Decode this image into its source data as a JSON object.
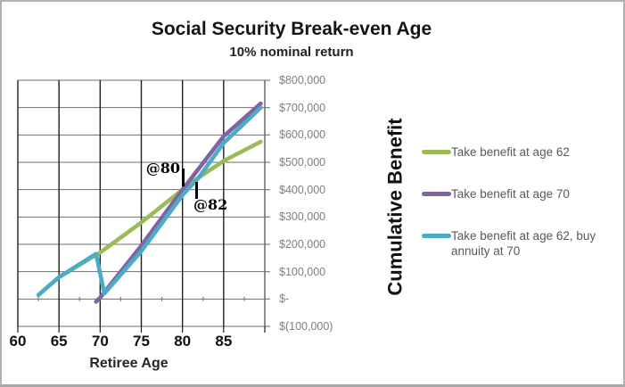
{
  "frame": {
    "background": "#ffffff",
    "border_color": "#b1b1b1"
  },
  "header": {
    "title": "Social Security Break-even Age",
    "subtitle": "10% nominal return"
  },
  "axes": {
    "x_title": "Retiree Age",
    "y_title": "Cumulative Benefit",
    "x_tick_labels": [
      "60",
      "65",
      "70",
      "75",
      "80",
      "85"
    ],
    "y_tick_labels": [
      "$800,000",
      "$700,000",
      "$600,000",
      "$500,000",
      "$400,000",
      "$300,000",
      "$200,000",
      "$100,000",
      "$-",
      "$(100,000)"
    ]
  },
  "colors": {
    "series_green": "#9BBB59",
    "series_purple": "#8064A2",
    "series_teal": "#4BACC6",
    "grid_vertical": "#1f1f1f",
    "grid_horizontal": "#6e6e6e",
    "axis_line": "#808080",
    "tick_label_text": "#7f7f7f",
    "legend_text": "#595959",
    "title_text": "#141414"
  },
  "chart_data": {
    "type": "line",
    "title": "Social Security Break-even Age",
    "subtitle": "10% nominal return",
    "xlabel": "Retiree Age",
    "ylabel": "Cumulative Benefit",
    "xlim": [
      60,
      90
    ],
    "ylim": [
      -100000,
      800000
    ],
    "x_tick_step": 5,
    "y_tick_step": 100000,
    "x_ticks_labeled": [
      60,
      65,
      70,
      75,
      80,
      85
    ],
    "grid": true,
    "legend_position": "right",
    "series": [
      {
        "name": "Take benefit at age 62",
        "color": "#9BBB59",
        "points": [
          [
            62.5,
            15000
          ],
          [
            65,
            80000
          ],
          [
            70,
            170000
          ],
          [
            75,
            280000
          ],
          [
            80,
            400000
          ],
          [
            82,
            445000
          ],
          [
            85,
            505000
          ],
          [
            89.5,
            575000
          ]
        ]
      },
      {
        "name": "Take benefit at age 70",
        "color": "#8064A2",
        "points": [
          [
            69.5,
            -10000
          ],
          [
            70,
            5000
          ],
          [
            75,
            195000
          ],
          [
            80,
            400000
          ],
          [
            85,
            595000
          ],
          [
            89.5,
            715000
          ]
        ]
      },
      {
        "name": "Take benefit at age 62, buy annuity at 70",
        "color": "#4BACC6",
        "points": [
          [
            62.5,
            15000
          ],
          [
            65,
            80000
          ],
          [
            69.5,
            165000
          ],
          [
            70.5,
            20000
          ],
          [
            75,
            175000
          ],
          [
            80,
            380000
          ],
          [
            82,
            445000
          ],
          [
            85,
            570000
          ],
          [
            89.5,
            700000
          ]
        ]
      }
    ],
    "annotations": [
      {
        "text": "@80",
        "x": 80,
        "y": 430000
      },
      {
        "text": "@82",
        "x": 82,
        "y": 360000
      }
    ]
  }
}
